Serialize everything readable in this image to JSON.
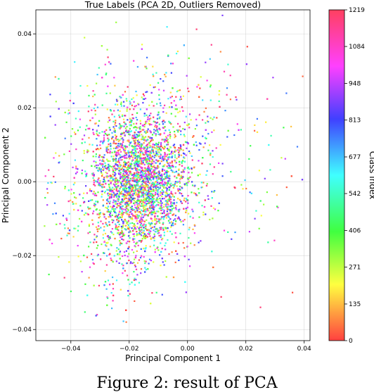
{
  "chart_data": {
    "type": "scatter",
    "title": "True Labels (PCA 2D, Outliers Removed)",
    "xlabel": "Principal Component 1",
    "ylabel": "Principal Component 2",
    "xlim": [
      -0.052,
      0.042
    ],
    "ylim": [
      -0.043,
      0.0465
    ],
    "xticks": [
      -0.04,
      -0.02,
      0.0,
      0.02,
      0.04
    ],
    "xtick_labels": [
      "−0.04",
      "−0.02",
      "0.00",
      "0.02",
      "0.04"
    ],
    "yticks": [
      -0.04,
      -0.02,
      0.0,
      0.02,
      0.04
    ],
    "ytick_labels": [
      "−0.04",
      "−0.02",
      "0.00",
      "0.02",
      "0.04"
    ],
    "grid": true,
    "colorbar": {
      "label": "Class Index",
      "min": 0,
      "max": 1219,
      "ticks": [
        0,
        135,
        271,
        406,
        542,
        677,
        813,
        948,
        1084,
        1219
      ],
      "colormap": "hsv-like",
      "colors": [
        "#ff4040",
        "#ffff40",
        "#40ff40",
        "#40ffff",
        "#4040ff",
        "#ff40ff",
        "#ff4060"
      ]
    },
    "points": [
      {
        "x": -0.015,
        "y": 0.0015,
        "c": 610
      },
      {
        "x": -0.0245,
        "y": 0.008,
        "c": 120
      },
      {
        "x": -0.009,
        "y": -0.006,
        "c": 980
      },
      {
        "x": 0.012,
        "y": 0.045,
        "c": 880
      },
      {
        "x": 0.0395,
        "y": 0.0285,
        "c": 40
      },
      {
        "x": 0.034,
        "y": -0.0015,
        "c": 30
      },
      {
        "x": -0.049,
        "y": -0.012,
        "c": 300
      },
      {
        "x": -0.031,
        "y": -0.036,
        "c": 1100
      },
      {
        "x": -0.021,
        "y": -0.038,
        "c": 60
      },
      {
        "x": 0.025,
        "y": -0.034,
        "c": 1190
      },
      {
        "x": 0.036,
        "y": -0.03,
        "c": 15
      }
    ]
  },
  "figure_caption": "Figure 2: result of PCA"
}
